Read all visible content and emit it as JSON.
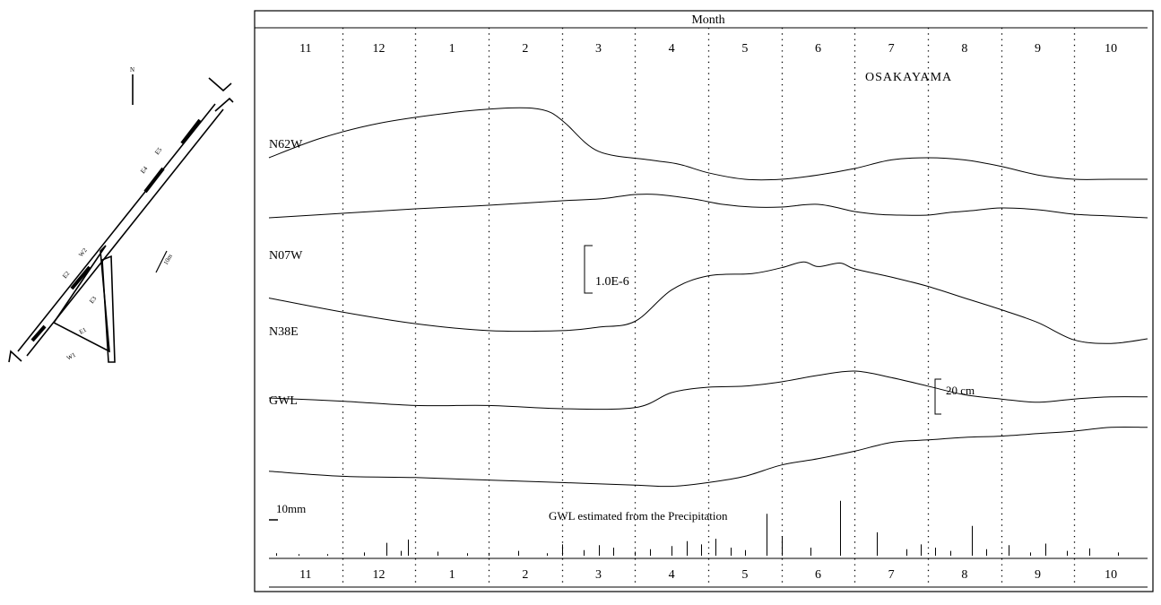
{
  "map": {
    "labels": [
      "E5",
      "E4",
      "E3",
      "E2",
      "W2",
      "W1",
      "E1",
      "N"
    ],
    "scale_label": "10m"
  },
  "chart_data": {
    "type": "line",
    "title": "OSAKAYAMA",
    "x_axis_title": "Month",
    "x_start_month": 11,
    "categories": [
      "11",
      "12",
      "1",
      "2",
      "3",
      "4",
      "5",
      "6",
      "7",
      "8",
      "9",
      "10"
    ],
    "strain_scale": "1.0E-6",
    "gwl_scale": "20 cm",
    "precip_scale": "10mm",
    "precip_caption": "GWL estimated from the Precipitation",
    "grid": "dotted vertical month separators",
    "series": [
      {
        "name": "N62W",
        "x": [
          0,
          0.7,
          1.5,
          2.5,
          3.2,
          3.6,
          3.85,
          4.05,
          4.5,
          5.2,
          5.6,
          6.0,
          6.5,
          7.0,
          7.5,
          8.0,
          8.5,
          9.0,
          9.5,
          10.0,
          10.5,
          11.0,
          11.5,
          12.0
        ],
        "y": [
          0,
          0.9,
          1.6,
          2.1,
          2.3,
          2.3,
          2.1,
          1.6,
          0.3,
          -0.1,
          -0.3,
          -0.7,
          -1.0,
          -1.0,
          -0.8,
          -0.5,
          -0.1,
          0.0,
          -0.1,
          -0.4,
          -0.8,
          -1.0,
          -1.0,
          -1.0
        ]
      },
      {
        "name": "N07W",
        "x": [
          0,
          1.0,
          2.0,
          3.0,
          4.0,
          4.5,
          4.8,
          5.0,
          5.3,
          5.8,
          6.2,
          6.6,
          7.0,
          7.5,
          8.0,
          8.3,
          8.6,
          9.0,
          9.3,
          9.6,
          10.0,
          10.5,
          11.0,
          11.5,
          12.0
        ],
        "y": [
          1.3,
          1.8,
          2.3,
          2.7,
          3.2,
          3.4,
          3.7,
          3.9,
          3.9,
          3.4,
          2.8,
          2.5,
          2.5,
          2.8,
          2.0,
          1.7,
          1.6,
          1.6,
          1.9,
          2.1,
          2.4,
          2.2,
          1.7,
          1.5,
          1.3
        ]
      },
      {
        "name": "N38E",
        "x": [
          0,
          1.0,
          2.0,
          3.0,
          4.0,
          4.5,
          5.0,
          5.5,
          6.0,
          6.6,
          7.0,
          7.3,
          7.5,
          7.8,
          8.0,
          8.5,
          9.0,
          9.5,
          10.0,
          10.5,
          11.0,
          11.5,
          12.0
        ],
        "y": [
          1.5,
          0.3,
          -0.7,
          -1.3,
          -1.3,
          -1.0,
          -0.5,
          2.2,
          3.4,
          3.6,
          4.1,
          4.6,
          4.2,
          4.5,
          4.0,
          3.3,
          2.5,
          1.5,
          0.5,
          -0.6,
          -2.1,
          -2.4,
          -2.0
        ]
      },
      {
        "name": "GWL",
        "x": [
          0,
          1.0,
          2.0,
          3.0,
          4.0,
          5.0,
          5.5,
          6.0,
          6.5,
          7.0,
          7.5,
          8.0,
          8.5,
          9.0,
          9.5,
          10.0,
          10.5,
          11.0,
          11.5,
          12.0
        ],
        "y": [
          -0.5,
          -0.8,
          -1.2,
          -1.2,
          -1.5,
          -1.4,
          0.0,
          0.5,
          0.6,
          1.0,
          1.6,
          2.0,
          1.4,
          0.6,
          -0.2,
          -0.6,
          -0.9,
          -0.6,
          -0.4,
          -0.4
        ]
      },
      {
        "name": "GWL estimated from the Precipitation",
        "x": [
          0,
          1.0,
          2.0,
          3.0,
          4.0,
          5.0,
          5.5,
          6.0,
          6.5,
          7.0,
          7.5,
          8.0,
          8.5,
          9.0,
          9.5,
          10.0,
          10.5,
          11.0,
          11.5,
          12.0
        ],
        "y": [
          -0.7,
          -1.1,
          -1.2,
          -1.4,
          -1.6,
          -1.8,
          -1.9,
          -1.6,
          -1.1,
          -0.2,
          0.3,
          0.9,
          1.6,
          1.8,
          2.0,
          2.1,
          2.3,
          2.5,
          2.8,
          2.8
        ]
      }
    ],
    "precipitation": {
      "unit": "mm",
      "x": [
        0.1,
        0.4,
        0.8,
        1.3,
        1.6,
        1.8,
        1.9,
        2.3,
        2.7,
        3.0,
        3.4,
        3.8,
        4.0,
        4.3,
        4.5,
        4.7,
        5.0,
        5.2,
        5.5,
        5.7,
        5.9,
        6.1,
        6.3,
        6.5,
        6.8,
        7.0,
        7.4,
        7.8,
        8.3,
        8.7,
        8.9,
        9.1,
        9.3,
        9.6,
        9.8,
        10.1,
        10.4,
        10.6,
        10.9,
        11.2,
        11.6
      ],
      "values": [
        0.3,
        0.2,
        0.2,
        0.4,
        1.6,
        0.6,
        2.0,
        0.5,
        0.3,
        0.3,
        0.6,
        0.3,
        1.4,
        0.7,
        1.3,
        1.0,
        0.5,
        0.8,
        1.2,
        1.8,
        1.4,
        2.1,
        1.0,
        0.7,
        5.2,
        2.4,
        1.0,
        6.8,
        2.9,
        0.8,
        1.4,
        1.0,
        0.6,
        3.7,
        0.8,
        1.3,
        0.4,
        1.5,
        0.6,
        0.9,
        0.4
      ]
    }
  }
}
